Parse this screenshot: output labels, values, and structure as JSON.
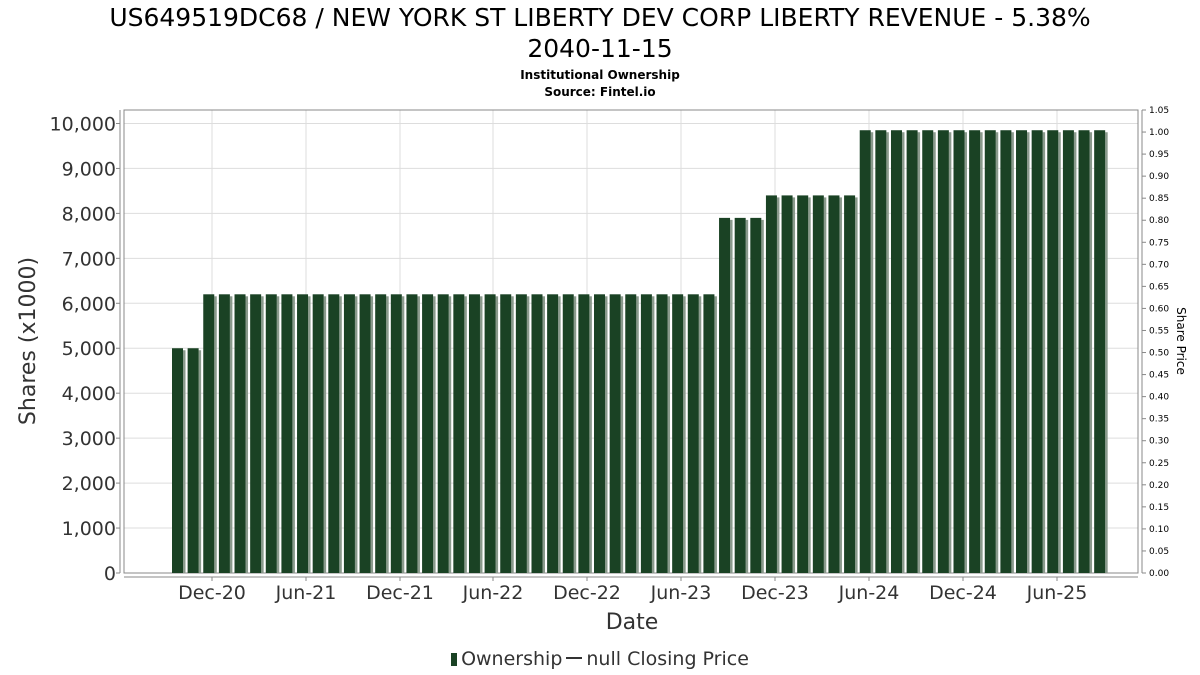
{
  "header": {
    "title_line1": "US649519DC68 / NEW YORK ST LIBERTY DEV CORP LIBERTY REVENUE - 5.38%",
    "title_line2": "2040-11-15",
    "subtitle1": "Institutional Ownership",
    "subtitle2": "Source: Fintel.io"
  },
  "legend": {
    "ownership": "Ownership",
    "closing_price": "null Closing Price"
  },
  "colors": {
    "bar": "#1a4224",
    "bar_shadow": "#8a9a8c",
    "grid": "#dddddd",
    "frame": "#888888"
  },
  "chart_data": {
    "type": "bar",
    "title": "US649519DC68 / NEW YORK ST LIBERTY DEV CORP LIBERTY REVENUE - 5.38% 2040-11-15",
    "xlabel": "Date",
    "ylabel": "Shares (x1000)",
    "y2label": "Share Price",
    "ylim": [
      0,
      10300
    ],
    "y2lim": [
      0,
      1.05
    ],
    "grid": true,
    "legend_position": "bottom",
    "x_ticks": [
      "Dec-20",
      "Jun-21",
      "Dec-21",
      "Jun-22",
      "Dec-22",
      "Jun-23",
      "Dec-23",
      "Jun-24",
      "Dec-24",
      "Jun-25"
    ],
    "y_ticks": [
      "0",
      "1,000",
      "2,000",
      "3,000",
      "4,000",
      "5,000",
      "6,000",
      "7,000",
      "8,000",
      "9,000",
      "10,000"
    ],
    "y2_ticks": [
      "0.00",
      "0.05",
      "0.10",
      "0.15",
      "0.20",
      "0.25",
      "0.30",
      "0.35",
      "0.40",
      "0.45",
      "0.50",
      "0.55",
      "0.60",
      "0.65",
      "0.70",
      "0.75",
      "0.80",
      "0.85",
      "0.90",
      "0.95",
      "1.00",
      "1.05"
    ],
    "series": [
      {
        "name": "Ownership",
        "values": [
          5000,
          5000,
          6200,
          6200,
          6200,
          6200,
          6200,
          6200,
          6200,
          6200,
          6200,
          6200,
          6200,
          6200,
          6200,
          6200,
          6200,
          6200,
          6200,
          6200,
          6200,
          6200,
          6200,
          6200,
          6200,
          6200,
          6200,
          6200,
          6200,
          6200,
          6200,
          6200,
          6200,
          6200,
          6200,
          7900,
          7900,
          7900,
          8400,
          8400,
          8400,
          8400,
          8400,
          8400,
          9850,
          9850,
          9850,
          9850,
          9850,
          9850,
          9850,
          9850,
          9850,
          9850,
          9850,
          9850,
          9850,
          9850,
          9850,
          9850
        ]
      }
    ]
  }
}
